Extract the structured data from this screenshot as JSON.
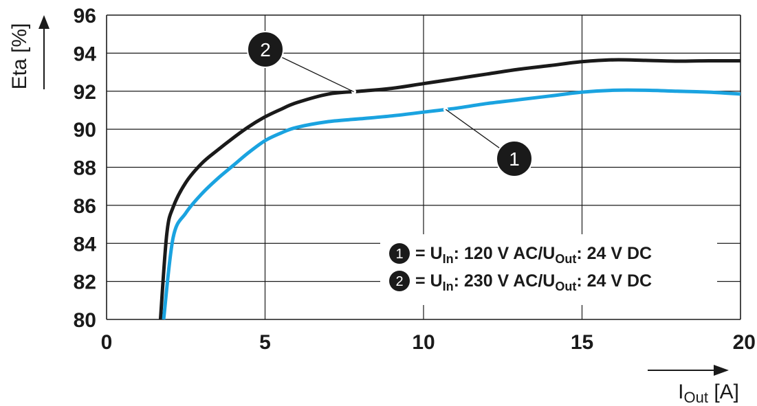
{
  "chart_data": {
    "type": "line",
    "xlabel": {
      "base": "I",
      "sub": "Out",
      "unit": "[A]"
    },
    "ylabel": "Eta [%]",
    "xlim": [
      0,
      20
    ],
    "ylim": [
      80,
      96
    ],
    "x_ticks": [
      "0",
      "5",
      "10",
      "15",
      "20"
    ],
    "y_ticks": [
      "80",
      "82",
      "84",
      "86",
      "88",
      "90",
      "92",
      "94",
      "96"
    ],
    "grid": true,
    "legend_position": "bottom-right",
    "series": [
      {
        "id": "1",
        "color": "#1aa3e0",
        "legend": {
          "prefix": "= U",
          "sub1": "In",
          "mid": ": 120 V AC/U",
          "sub2": "Out",
          "suffix": ": 24 V DC"
        },
        "x": [
          1.8,
          2.1,
          2.5,
          3,
          3.5,
          4,
          4.5,
          5,
          5.5,
          6,
          7,
          8,
          9,
          10,
          11,
          12,
          13,
          14,
          15,
          16,
          17,
          18,
          19,
          20
        ],
        "y": [
          80,
          84.3,
          85.6,
          86.6,
          87.4,
          88.1,
          88.8,
          89.4,
          89.8,
          90.1,
          90.4,
          90.55,
          90.7,
          90.9,
          91.1,
          91.35,
          91.55,
          91.75,
          91.95,
          92.05,
          92.05,
          92.0,
          91.95,
          91.85
        ],
        "callout_x": 10.7
      },
      {
        "id": "2",
        "color": "#1a1a1a",
        "legend": {
          "prefix": "= U",
          "sub1": "In",
          "mid": ": 230 V AC/U",
          "sub2": "Out",
          "suffix": ": 24 V DC"
        },
        "x": [
          1.7,
          1.9,
          2.1,
          2.5,
          3,
          3.5,
          4,
          4.5,
          5,
          5.5,
          6,
          7,
          8,
          9,
          10,
          11,
          12,
          13,
          14,
          15,
          16,
          17,
          18,
          19,
          20
        ],
        "y": [
          80,
          84.5,
          85.9,
          87.2,
          88.2,
          88.9,
          89.55,
          90.15,
          90.65,
          91.05,
          91.4,
          91.85,
          92.0,
          92.15,
          92.4,
          92.65,
          92.9,
          93.15,
          93.35,
          93.55,
          93.65,
          93.62,
          93.58,
          93.6,
          93.6
        ],
        "callout_x": 7.8
      }
    ]
  }
}
